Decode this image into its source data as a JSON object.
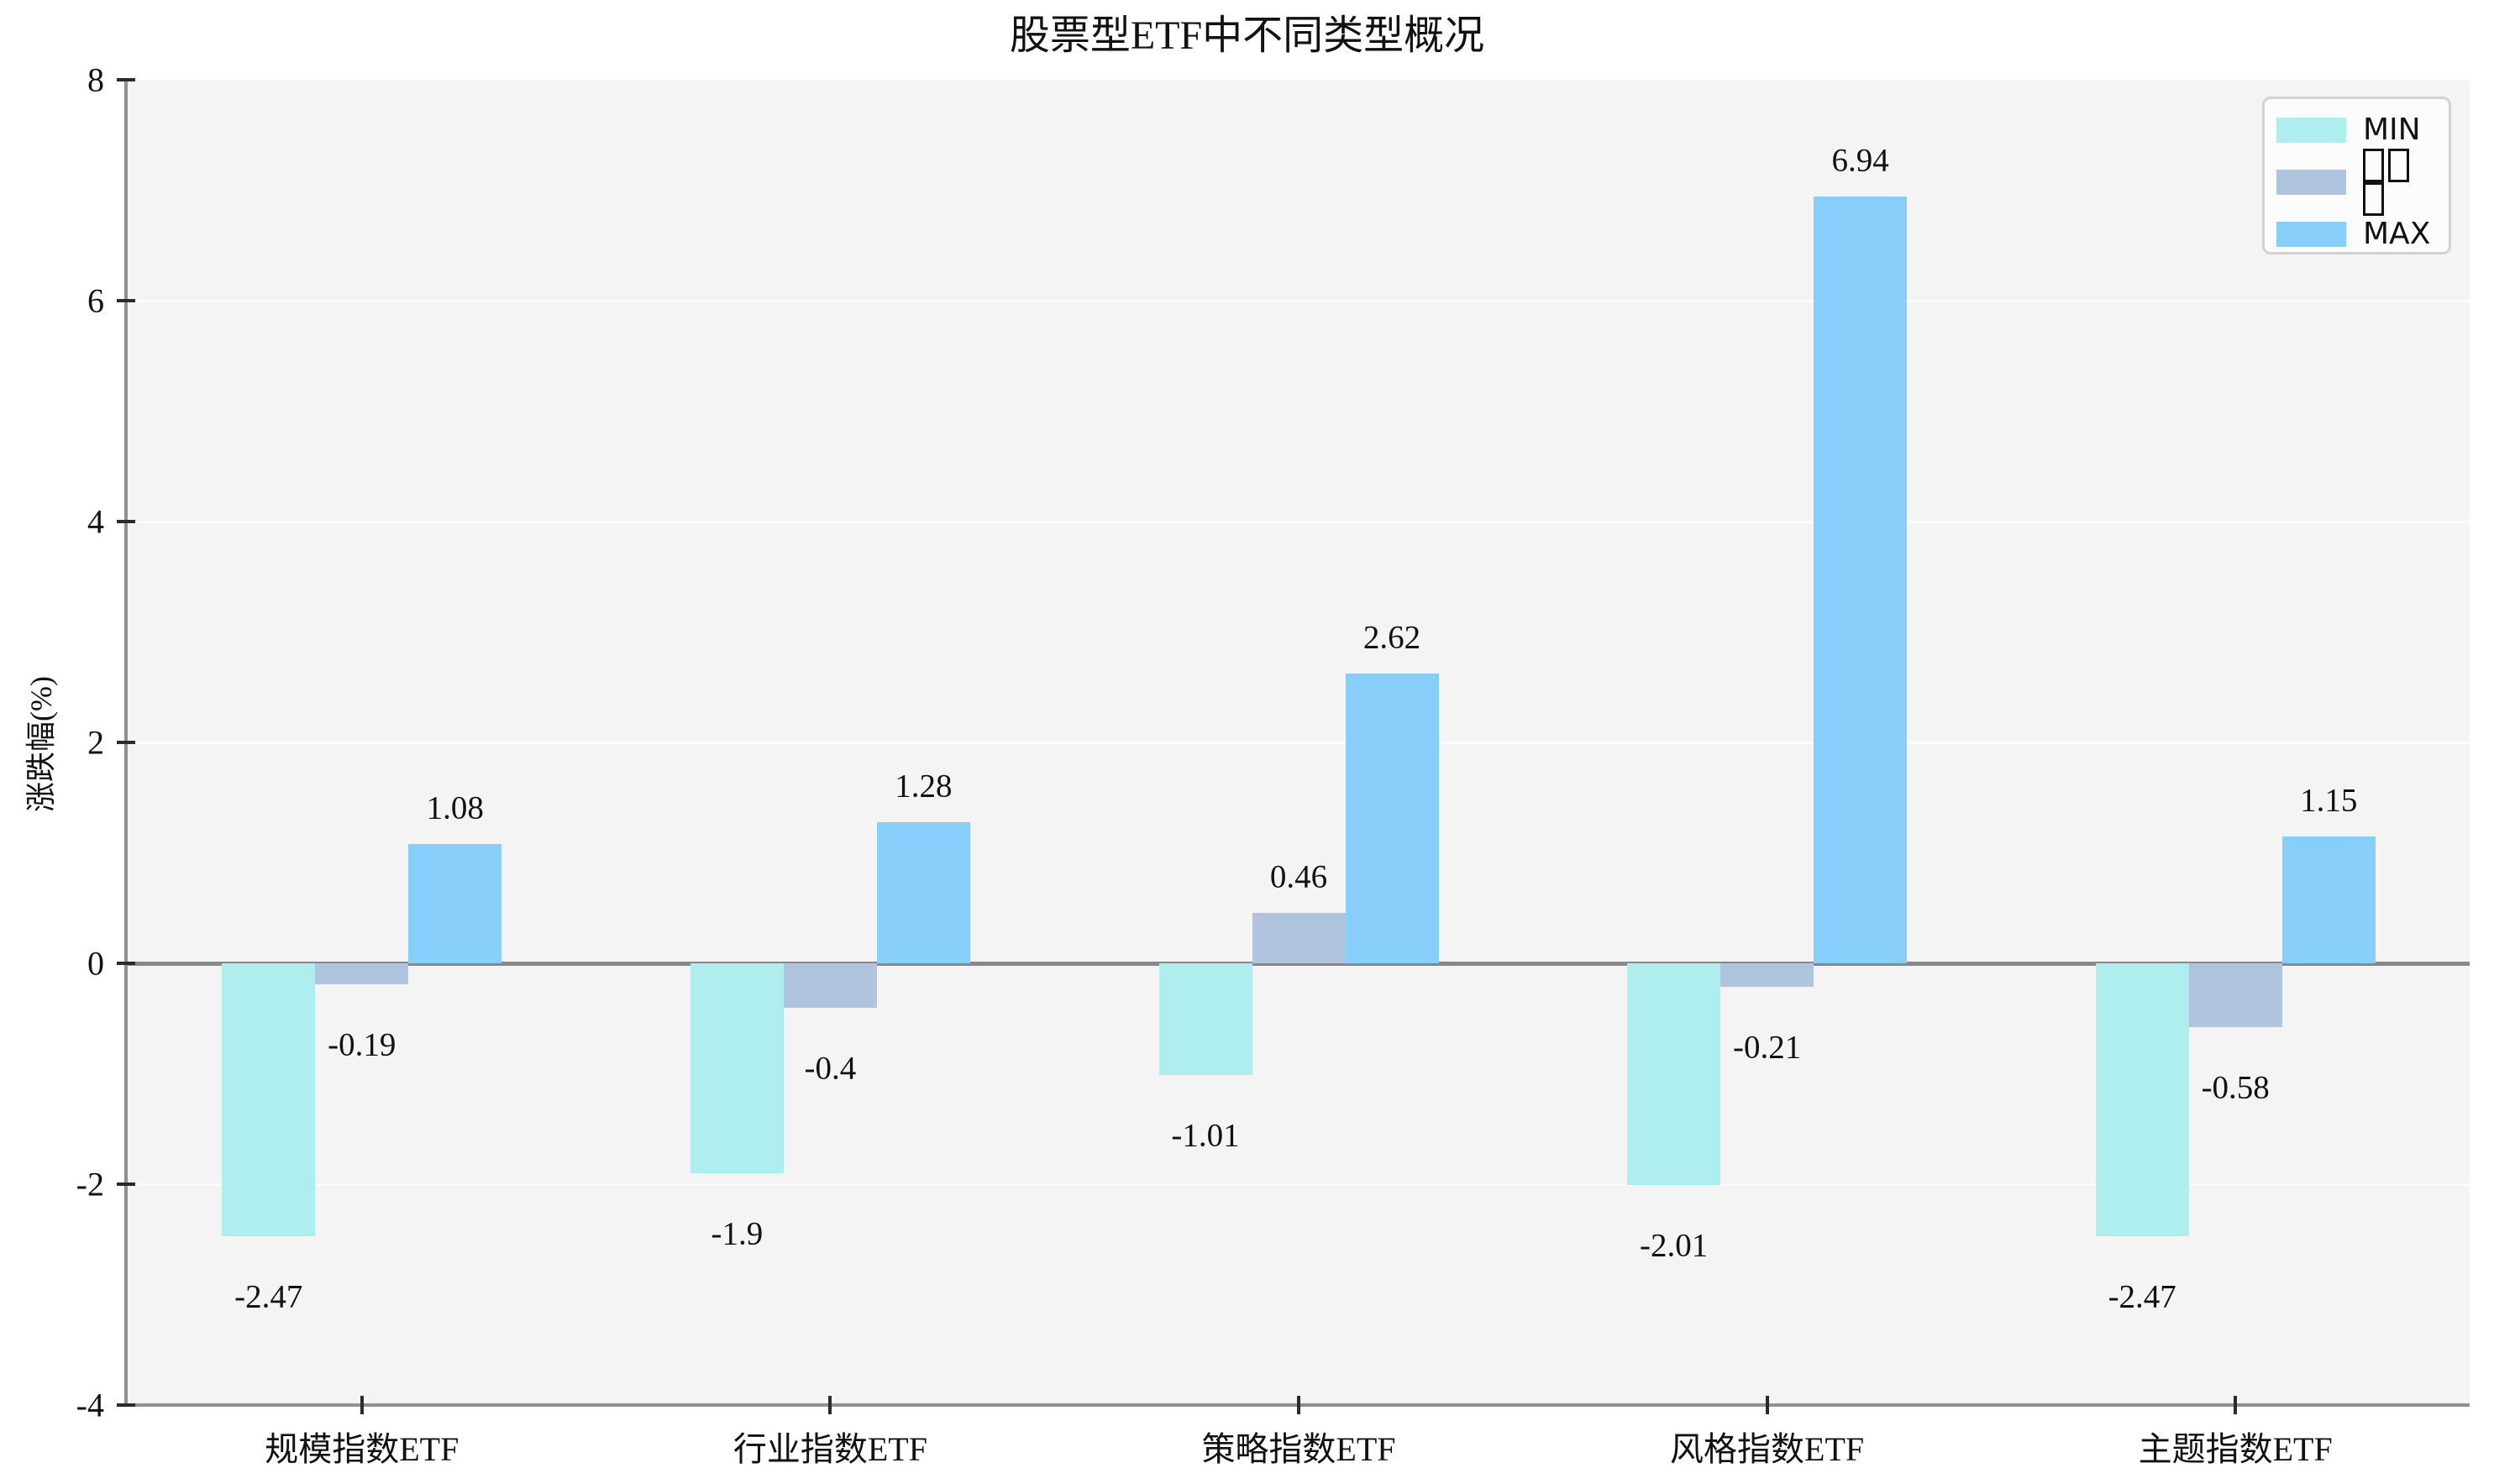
{
  "chart_data": {
    "type": "bar",
    "title": "股票型ETF中不同类型概况",
    "ylabel": "涨跌幅(%)",
    "categories": [
      "规模指数ETF",
      "行业指数ETF",
      "策略指数ETF",
      "风格指数ETF",
      "主题指数ETF"
    ],
    "series": [
      {
        "name": "MIN",
        "color": "#afeeee",
        "tofu": false,
        "values": [
          -2.47,
          -1.9,
          -1.01,
          -2.01,
          -2.47
        ]
      },
      {
        "name": "□□□",
        "color": "#b0c4de",
        "tofu": true,
        "values": [
          -0.19,
          -0.4,
          0.46,
          -0.21,
          -0.58
        ]
      },
      {
        "name": "MAX",
        "color": "#87cefa",
        "tofu": false,
        "values": [
          1.08,
          1.28,
          2.62,
          6.94,
          1.15
        ]
      }
    ],
    "bar_value_labels": [
      [
        "-2.47",
        "-0.19",
        "1.08"
      ],
      [
        "-1.9",
        "-0.4",
        "1.28"
      ],
      [
        "-1.01",
        "0.46",
        "2.62"
      ],
      [
        "-2.01",
        "-0.21",
        "6.94"
      ],
      [
        "-2.47",
        "-0.58",
        "1.15"
      ]
    ],
    "ylim": [
      -4,
      8
    ],
    "yticks": [
      8,
      6,
      4,
      2,
      0,
      -2,
      -4
    ],
    "grid": true,
    "legend_position": "upper-right",
    "colors": {
      "plot_background": "#f4f4f5",
      "gridline": "#fbfbfb",
      "zero_line": "#888888",
      "spine": "#909090",
      "min_series": "#afeeee",
      "median_series": "#b0c4de",
      "max_series": "#87cefa"
    }
  }
}
